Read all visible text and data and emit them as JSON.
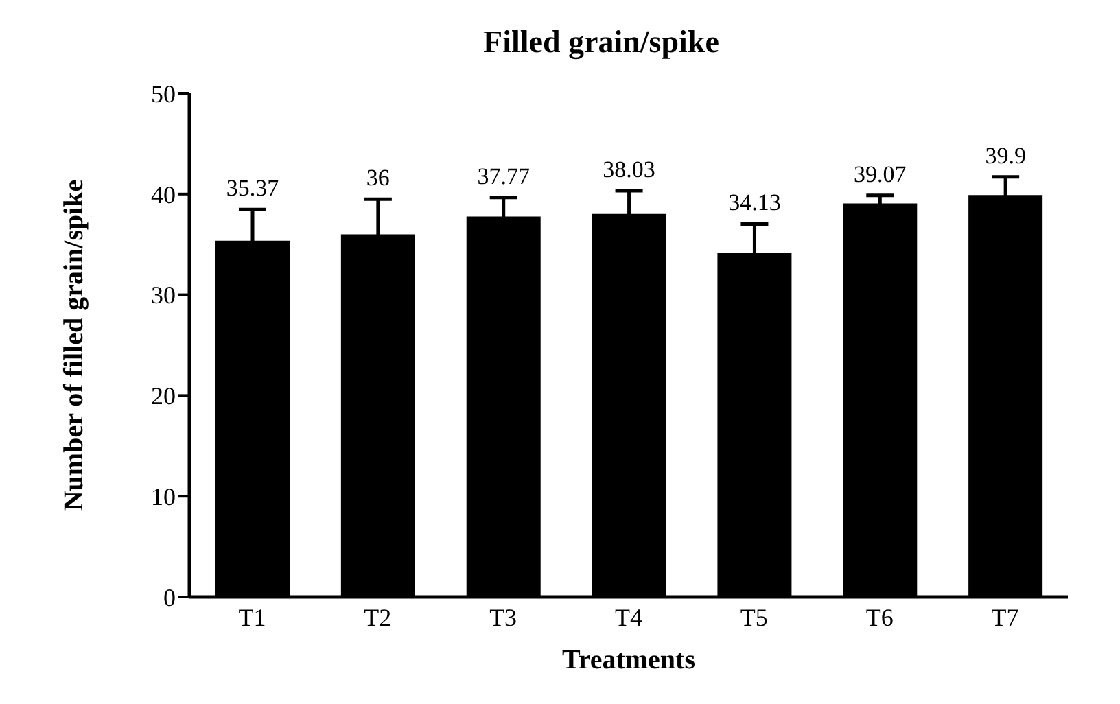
{
  "chart_data": {
    "type": "bar",
    "title": "Filled grain/spike",
    "xlabel": "Treatments",
    "ylabel": "Number of filled grain/spike",
    "categories": [
      "T1",
      "T2",
      "T3",
      "T4",
      "T5",
      "T6",
      "T7"
    ],
    "values": [
      35.37,
      36,
      37.77,
      38.03,
      34.13,
      39.07,
      39.9
    ],
    "errors": [
      3.1,
      3.5,
      1.9,
      2.3,
      2.9,
      0.8,
      1.8
    ],
    "color": "#000000",
    "ylim": [
      0,
      50
    ],
    "yticks": [
      0,
      10,
      20,
      30,
      40,
      50
    ],
    "grid": false,
    "legend": false,
    "data_labels": true
  }
}
